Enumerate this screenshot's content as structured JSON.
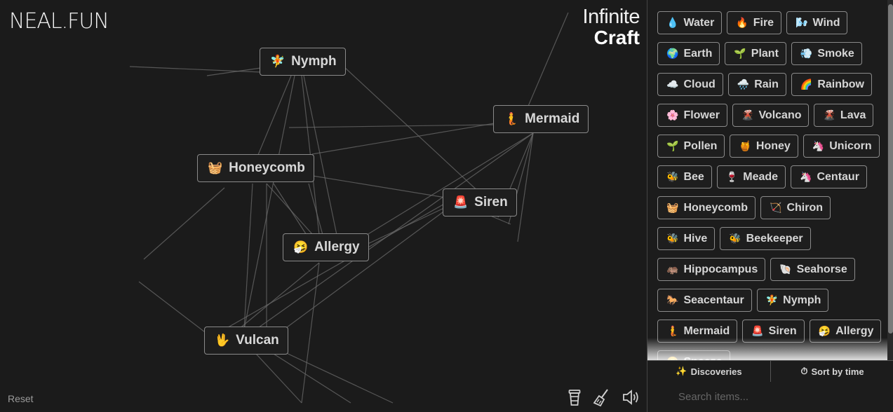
{
  "logo": "NEAL.FUN",
  "brand": {
    "line1": "Infinite",
    "line2": "Craft"
  },
  "canvas_items": [
    {
      "emoji": "🧚",
      "label": "Nymph"
    },
    {
      "emoji": "🧜",
      "label": "Mermaid"
    },
    {
      "emoji": "🧺",
      "label": "Honeycomb"
    },
    {
      "emoji": "🚨",
      "label": "Siren"
    },
    {
      "emoji": "🤧",
      "label": "Allergy"
    },
    {
      "emoji": "🖖",
      "label": "Vulcan"
    }
  ],
  "reset_label": "Reset",
  "sidebar_items": [
    {
      "emoji": "💧",
      "label": "Water"
    },
    {
      "emoji": "🔥",
      "label": "Fire"
    },
    {
      "emoji": "🌬️",
      "label": "Wind"
    },
    {
      "emoji": "🌍",
      "label": "Earth"
    },
    {
      "emoji": "🌱",
      "label": "Plant"
    },
    {
      "emoji": "💨",
      "label": "Smoke"
    },
    {
      "emoji": "☁️",
      "label": "Cloud"
    },
    {
      "emoji": "🌧️",
      "label": "Rain"
    },
    {
      "emoji": "🌈",
      "label": "Rainbow"
    },
    {
      "emoji": "🌸",
      "label": "Flower"
    },
    {
      "emoji": "🌋",
      "label": "Volcano"
    },
    {
      "emoji": "🌋",
      "label": "Lava"
    },
    {
      "emoji": "🌱",
      "label": "Pollen"
    },
    {
      "emoji": "🍯",
      "label": "Honey"
    },
    {
      "emoji": "🦄",
      "label": "Unicorn"
    },
    {
      "emoji": "🐝",
      "label": "Bee"
    },
    {
      "emoji": "🍷",
      "label": "Meade"
    },
    {
      "emoji": "🦄",
      "label": "Centaur"
    },
    {
      "emoji": "🧺",
      "label": "Honeycomb"
    },
    {
      "emoji": "🏹",
      "label": "Chiron"
    },
    {
      "emoji": "🐝",
      "label": "Hive"
    },
    {
      "emoji": "🐝",
      "label": "Beekeeper"
    },
    {
      "emoji": "🦛",
      "label": "Hippocampus"
    },
    {
      "emoji": "🐚",
      "label": "Seahorse"
    },
    {
      "emoji": "🐎",
      "label": "Seacentaur"
    },
    {
      "emoji": "🧚",
      "label": "Nymph"
    },
    {
      "emoji": "🧜",
      "label": "Mermaid"
    },
    {
      "emoji": "🚨",
      "label": "Siren"
    },
    {
      "emoji": "🤧",
      "label": "Allergy"
    },
    {
      "emoji": "🤧",
      "label": "Sneeze"
    }
  ],
  "tabs": {
    "discoveries": "Discoveries",
    "sort": "Sort by time"
  },
  "search": {
    "placeholder": "Search items..."
  },
  "icons": {
    "coffee": "coffee-cup-icon",
    "broom": "broom-icon",
    "sound": "speaker-icon"
  }
}
